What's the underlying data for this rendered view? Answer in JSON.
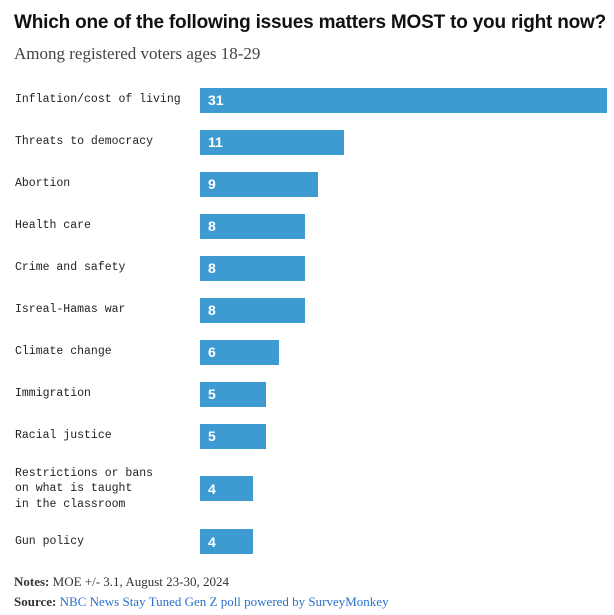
{
  "chart_data": {
    "type": "bar",
    "orientation": "horizontal",
    "title": "Which one of the following issues matters MOST to you right now?",
    "subtitle": "Among registered voters ages 18-29",
    "categories": [
      "Inflation/cost of living",
      "Threats to democracy",
      "Abortion",
      "Health care",
      "Crime and safety",
      "Isreal-Hamas war",
      "Climate change",
      "Immigration",
      "Racial justice",
      "Restrictions or bans\non what is taught\nin the classroom",
      "Gun policy"
    ],
    "values": [
      31,
      11,
      9,
      8,
      8,
      8,
      6,
      5,
      5,
      4,
      4
    ],
    "color": "#3d9bd1",
    "notes_label": "Notes:",
    "notes": "MOE +/- 3.1, August 23-30, 2024",
    "source_label": "Source:",
    "source": "NBC News Stay Tuned Gen Z poll powered by SurveyMonkey"
  }
}
